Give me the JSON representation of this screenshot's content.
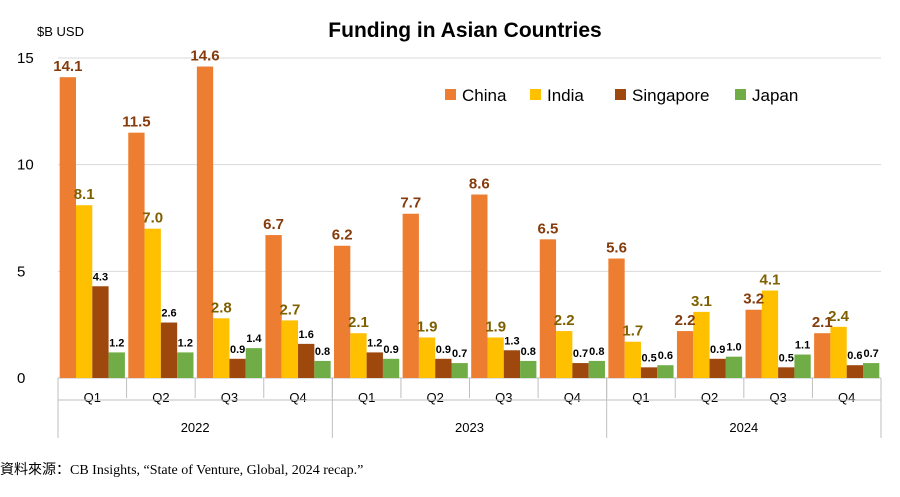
{
  "chart_data": {
    "type": "bar",
    "title": "Funding in Asian Countries",
    "unit_label": "$B USD",
    "ylim": [
      0,
      15
    ],
    "yticks": [
      "0",
      "5",
      "10",
      "15"
    ],
    "grid": true,
    "legend_position": "top-right",
    "groups": [
      {
        "label": "2022",
        "categories": [
          "Q1",
          "Q2",
          "Q3",
          "Q4"
        ]
      },
      {
        "label": "2023",
        "categories": [
          "Q1",
          "Q2",
          "Q3",
          "Q4"
        ]
      },
      {
        "label": "2024",
        "categories": [
          "Q1",
          "Q2",
          "Q3",
          "Q4"
        ]
      }
    ],
    "series": [
      {
        "name": "China",
        "color": "#ED7D31",
        "label_color": "#843C0C",
        "values": [
          14.1,
          11.5,
          14.6,
          6.7,
          6.2,
          7.7,
          8.6,
          6.5,
          5.6,
          2.2,
          3.2,
          2.1
        ]
      },
      {
        "name": "India",
        "color": "#FFC000",
        "label_color": "#7F6000",
        "values": [
          8.1,
          7.0,
          2.8,
          2.7,
          2.1,
          1.9,
          1.9,
          2.2,
          1.7,
          3.1,
          4.1,
          2.4
        ]
      },
      {
        "name": "Singapore",
        "color": "#9E480E",
        "label_color": "#000000",
        "values": [
          4.3,
          2.6,
          0.9,
          1.6,
          1.2,
          0.9,
          1.3,
          0.7,
          0.5,
          0.9,
          0.5,
          0.6
        ]
      },
      {
        "name": "Japan",
        "color": "#70AD47",
        "label_color": "#000000",
        "values": [
          1.2,
          1.2,
          1.4,
          0.8,
          0.9,
          0.7,
          0.8,
          0.8,
          0.6,
          1.0,
          1.1,
          0.7
        ]
      }
    ]
  },
  "source_note": "資料來源：CB Insights, “State of Venture, Global, 2024 recap.”"
}
